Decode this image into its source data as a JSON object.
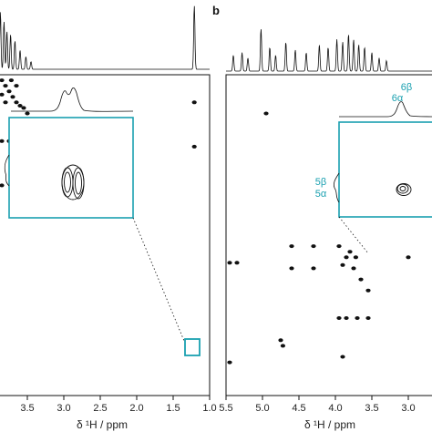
{
  "figure": {
    "panel_b_label": "b",
    "accent_color": "#1aa0b0",
    "ink_color": "#111111"
  },
  "chart_data": [
    {
      "type": "scatter",
      "panel": "a",
      "subtype": "2D NMR contour map with 1D projection",
      "xlabel": "δ ¹H / ppm",
      "x_ticks": [
        "3.5",
        "3.0",
        "2.5",
        "2.0",
        "1.5",
        "1.0"
      ],
      "x_tick_values": [
        3.5,
        3.0,
        2.5,
        2.0,
        1.5,
        1.0
      ],
      "xlim": [
        3.9,
        1.0
      ],
      "reversed_x": true,
      "projection_peaks": [
        {
          "ppm": 3.87,
          "height": 0.9
        },
        {
          "ppm": 3.82,
          "height": 0.75
        },
        {
          "ppm": 3.78,
          "height": 0.6
        },
        {
          "ppm": 3.73,
          "height": 0.55
        },
        {
          "ppm": 3.67,
          "height": 0.45
        },
        {
          "ppm": 3.6,
          "height": 0.3
        },
        {
          "ppm": 3.52,
          "height": 0.2
        },
        {
          "ppm": 3.45,
          "height": 0.12
        },
        {
          "ppm": 1.21,
          "height": 1.0
        }
      ],
      "contour_peaks": [
        {
          "x": 3.85,
          "y": 3.85
        },
        {
          "x": 3.8,
          "y": 3.8
        },
        {
          "x": 3.75,
          "y": 3.75
        },
        {
          "x": 3.7,
          "y": 3.7
        },
        {
          "x": 3.65,
          "y": 3.65
        },
        {
          "x": 3.6,
          "y": 3.62
        },
        {
          "x": 3.55,
          "y": 3.6
        },
        {
          "x": 3.85,
          "y": 3.72
        },
        {
          "x": 3.72,
          "y": 3.85
        },
        {
          "x": 3.8,
          "y": 3.65
        },
        {
          "x": 3.65,
          "y": 3.8
        },
        {
          "x": 3.9,
          "y": 3.78
        },
        {
          "x": 3.5,
          "y": 3.55
        },
        {
          "x": 3.85,
          "y": 3.3
        },
        {
          "x": 3.75,
          "y": 3.3
        },
        {
          "x": 3.6,
          "y": 3.3
        },
        {
          "x": 3.85,
          "y": 2.9
        },
        {
          "x": 3.7,
          "y": 2.9
        },
        {
          "x": 1.21,
          "y": 3.65
        },
        {
          "x": 1.21,
          "y": 3.25
        }
      ],
      "highlight_box": {
        "x": 1.21,
        "y": 3.25
      }
    },
    {
      "type": "scatter",
      "panel": "b",
      "subtype": "2D NMR contour map with 1D projection",
      "xlabel": "δ ¹H / ppm",
      "x_ticks": [
        "5.5",
        "5.0",
        "4.5",
        "4.0",
        "3.5",
        "3.0"
      ],
      "x_tick_values": [
        5.5,
        5.0,
        4.5,
        4.0,
        3.5,
        3.0
      ],
      "xlim": [
        5.5,
        2.6
      ],
      "reversed_x": true,
      "projection_peaks": [
        {
          "ppm": 5.4,
          "height": 0.3
        },
        {
          "ppm": 5.28,
          "height": 0.35
        },
        {
          "ppm": 5.2,
          "height": 0.25
        },
        {
          "ppm": 5.02,
          "height": 0.8
        },
        {
          "ppm": 4.9,
          "height": 0.45
        },
        {
          "ppm": 4.82,
          "height": 0.3
        },
        {
          "ppm": 4.68,
          "height": 0.55
        },
        {
          "ppm": 4.55,
          "height": 0.4
        },
        {
          "ppm": 4.4,
          "height": 0.35
        },
        {
          "ppm": 4.22,
          "height": 0.5
        },
        {
          "ppm": 4.1,
          "height": 0.45
        },
        {
          "ppm": 3.98,
          "height": 0.6
        },
        {
          "ppm": 3.9,
          "height": 0.55
        },
        {
          "ppm": 3.82,
          "height": 0.7
        },
        {
          "ppm": 3.75,
          "height": 0.6
        },
        {
          "ppm": 3.68,
          "height": 0.5
        },
        {
          "ppm": 3.6,
          "height": 0.45
        },
        {
          "ppm": 3.5,
          "height": 0.35
        },
        {
          "ppm": 3.4,
          "height": 0.25
        },
        {
          "ppm": 3.3,
          "height": 0.2
        }
      ],
      "contour_peaks": [
        {
          "x": 4.95,
          "y": 5.15
        },
        {
          "x": 3.95,
          "y": 3.95
        },
        {
          "x": 3.85,
          "y": 3.85
        },
        {
          "x": 3.75,
          "y": 3.75
        },
        {
          "x": 3.65,
          "y": 3.65
        },
        {
          "x": 3.55,
          "y": 3.55
        },
        {
          "x": 3.9,
          "y": 3.78
        },
        {
          "x": 3.8,
          "y": 3.9
        },
        {
          "x": 3.72,
          "y": 3.85
        },
        {
          "x": 5.45,
          "y": 3.8
        },
        {
          "x": 5.35,
          "y": 3.8
        },
        {
          "x": 4.6,
          "y": 3.75
        },
        {
          "x": 4.6,
          "y": 3.95
        },
        {
          "x": 4.3,
          "y": 3.95
        },
        {
          "x": 4.3,
          "y": 3.75
        },
        {
          "x": 3.95,
          "y": 3.3
        },
        {
          "x": 3.85,
          "y": 3.3
        },
        {
          "x": 3.7,
          "y": 3.3
        },
        {
          "x": 3.55,
          "y": 3.3
        },
        {
          "x": 4.75,
          "y": 3.1
        },
        {
          "x": 4.72,
          "y": 3.05
        },
        {
          "x": 5.45,
          "y": 2.9
        },
        {
          "x": 3.9,
          "y": 2.95
        },
        {
          "x": 3.0,
          "y": 3.85
        }
      ],
      "insets": [
        {
          "label_top": "6β",
          "label_bottom": "6α"
        },
        {
          "label_top": "5β",
          "label_bottom": "5α"
        }
      ]
    }
  ]
}
